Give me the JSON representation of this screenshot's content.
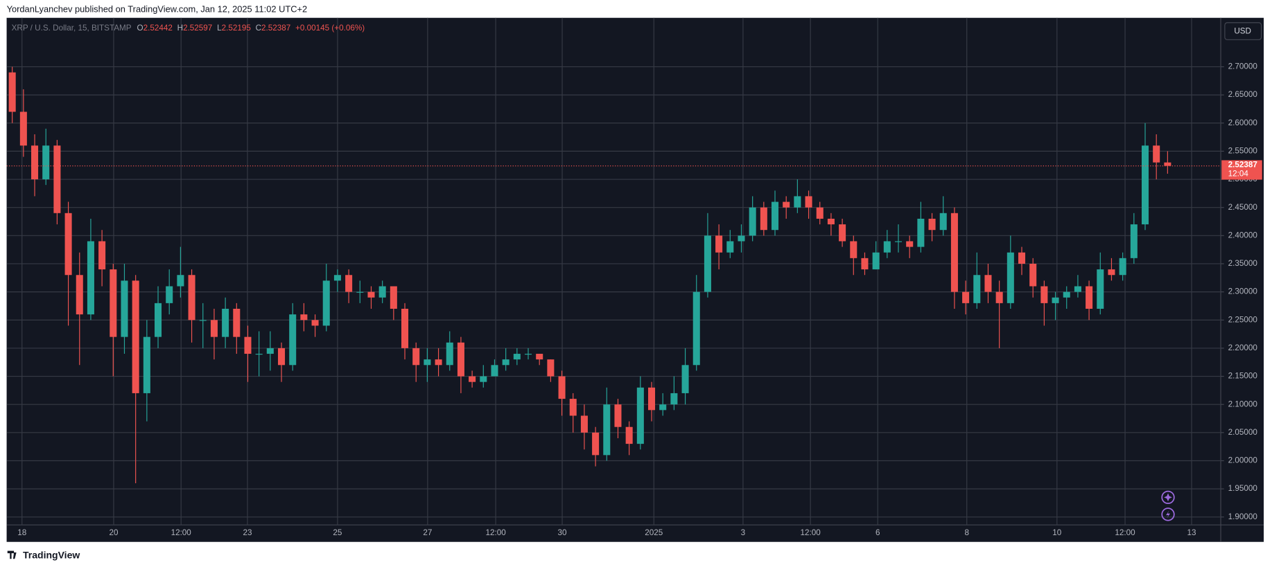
{
  "header": "YordanLyanchev published on TradingView.com, Jan 12, 2025 11:02 UTC+2",
  "footer": "TradingView",
  "chart_data": {
    "type": "candlestick",
    "title": "XRP / U.S. Dollar, 15, BITSTAMP",
    "ohlc_legend": {
      "labels": [
        "O",
        "H",
        "L",
        "C"
      ],
      "values": [
        2.52442,
        2.52597,
        2.52195,
        2.52387
      ],
      "change": "+0.00145 (+0.06%)"
    },
    "currency": "USD",
    "colors": {
      "up": "#26a69a",
      "down": "#ef5350"
    },
    "open": [
      2.69,
      2.62,
      2.56,
      2.5,
      2.56,
      2.44,
      2.33,
      2.26,
      2.39,
      2.34,
      2.22,
      2.32,
      2.12,
      2.22,
      2.28,
      2.31,
      2.33,
      2.25,
      2.25,
      2.22,
      2.27,
      2.22,
      2.19,
      2.19,
      2.2,
      2.17,
      2.26,
      2.25,
      2.24,
      2.32,
      2.33,
      2.3,
      2.3,
      2.29,
      2.31,
      2.27,
      2.2,
      2.17,
      2.18,
      2.17,
      2.21,
      2.15,
      2.14,
      2.15,
      2.17,
      2.18,
      2.19,
      2.19,
      2.18,
      2.15,
      2.11,
      2.08,
      2.05,
      2.01,
      2.1,
      2.06,
      2.03,
      2.13,
      2.09,
      2.1,
      2.12,
      2.17,
      2.3,
      2.4,
      2.37,
      2.39,
      2.4,
      2.45,
      2.41,
      2.46,
      2.45,
      2.47,
      2.45,
      2.43,
      2.42,
      2.39,
      2.36,
      2.34,
      2.37,
      2.39,
      2.39,
      2.38,
      2.43,
      2.41,
      2.44,
      2.3,
      2.28,
      2.33,
      2.3,
      2.28,
      2.37,
      2.35,
      2.31,
      2.28,
      2.29,
      2.3,
      2.31,
      2.27,
      2.34,
      2.33,
      2.36,
      2.42,
      2.56,
      2.53
    ],
    "high": [
      2.7,
      2.66,
      2.58,
      2.59,
      2.57,
      2.46,
      2.37,
      2.43,
      2.41,
      2.35,
      2.35,
      2.33,
      2.25,
      2.31,
      2.34,
      2.38,
      2.34,
      2.28,
      2.27,
      2.29,
      2.28,
      2.24,
      2.23,
      2.23,
      2.21,
      2.28,
      2.28,
      2.26,
      2.35,
      2.34,
      2.34,
      2.32,
      2.31,
      2.32,
      2.31,
      2.28,
      2.21,
      2.2,
      2.2,
      2.23,
      2.22,
      2.16,
      2.17,
      2.18,
      2.2,
      2.2,
      2.2,
      2.19,
      2.18,
      2.16,
      2.12,
      2.1,
      2.06,
      2.13,
      2.11,
      2.07,
      2.15,
      2.14,
      2.12,
      2.15,
      2.2,
      2.33,
      2.44,
      2.42,
      2.41,
      2.42,
      2.47,
      2.46,
      2.48,
      2.47,
      2.5,
      2.48,
      2.46,
      2.44,
      2.43,
      2.4,
      2.37,
      2.39,
      2.41,
      2.42,
      2.4,
      2.46,
      2.44,
      2.47,
      2.45,
      2.32,
      2.37,
      2.35,
      2.32,
      2.4,
      2.38,
      2.36,
      2.32,
      2.3,
      2.31,
      2.33,
      2.32,
      2.37,
      2.36,
      2.37,
      2.44,
      2.6,
      2.58,
      2.55
    ],
    "low": [
      2.6,
      2.54,
      2.47,
      2.49,
      2.42,
      2.24,
      2.17,
      2.25,
      2.31,
      2.15,
      2.19,
      1.96,
      2.07,
      2.2,
      2.26,
      2.29,
      2.21,
      2.2,
      2.18,
      2.2,
      2.19,
      2.14,
      2.15,
      2.16,
      2.14,
      2.16,
      2.23,
      2.22,
      2.23,
      2.3,
      2.28,
      2.28,
      2.27,
      2.28,
      2.25,
      2.18,
      2.14,
      2.14,
      2.15,
      2.16,
      2.12,
      2.13,
      2.13,
      2.15,
      2.16,
      2.17,
      2.18,
      2.17,
      2.14,
      2.08,
      2.05,
      2.02,
      1.99,
      2.0,
      2.04,
      2.01,
      2.02,
      2.07,
      2.08,
      2.09,
      2.1,
      2.16,
      2.29,
      2.34,
      2.36,
      2.37,
      2.39,
      2.4,
      2.4,
      2.43,
      2.44,
      2.43,
      2.42,
      2.4,
      2.38,
      2.33,
      2.33,
      2.34,
      2.36,
      2.37,
      2.36,
      2.37,
      2.39,
      2.4,
      2.27,
      2.26,
      2.27,
      2.28,
      2.2,
      2.27,
      2.33,
      2.29,
      2.24,
      2.25,
      2.27,
      2.29,
      2.25,
      2.26,
      2.32,
      2.32,
      2.35,
      2.41,
      2.5,
      2.51
    ],
    "close": [
      2.62,
      2.56,
      2.5,
      2.56,
      2.44,
      2.33,
      2.26,
      2.39,
      2.34,
      2.22,
      2.32,
      2.12,
      2.22,
      2.28,
      2.31,
      2.33,
      2.25,
      2.25,
      2.22,
      2.27,
      2.22,
      2.19,
      2.19,
      2.2,
      2.17,
      2.26,
      2.25,
      2.24,
      2.32,
      2.33,
      2.3,
      2.3,
      2.29,
      2.31,
      2.27,
      2.2,
      2.17,
      2.18,
      2.17,
      2.21,
      2.15,
      2.14,
      2.15,
      2.17,
      2.18,
      2.19,
      2.19,
      2.18,
      2.15,
      2.11,
      2.08,
      2.05,
      2.01,
      2.1,
      2.06,
      2.03,
      2.13,
      2.09,
      2.1,
      2.12,
      2.17,
      2.3,
      2.4,
      2.37,
      2.39,
      2.4,
      2.45,
      2.41,
      2.46,
      2.45,
      2.47,
      2.45,
      2.43,
      2.42,
      2.39,
      2.36,
      2.34,
      2.37,
      2.39,
      2.39,
      2.38,
      2.43,
      2.41,
      2.44,
      2.3,
      2.28,
      2.33,
      2.3,
      2.28,
      2.37,
      2.35,
      2.31,
      2.28,
      2.29,
      2.3,
      2.31,
      2.27,
      2.34,
      2.33,
      2.36,
      2.42,
      2.56,
      2.53,
      2.52387
    ],
    "last_price": 2.52387,
    "countdown": "12:04",
    "ylim": [
      1.886,
      2.787
    ],
    "yticks": [
      {
        "value": 1.9,
        "label": "1.90000"
      },
      {
        "value": 1.95,
        "label": "1.95000"
      },
      {
        "value": 2.0,
        "label": "2.00000"
      },
      {
        "value": 2.05,
        "label": "2.05000"
      },
      {
        "value": 2.1,
        "label": "2.10000"
      },
      {
        "value": 2.15,
        "label": "2.15000"
      },
      {
        "value": 2.2,
        "label": "2.20000"
      },
      {
        "value": 2.25,
        "label": "2.25000"
      },
      {
        "value": 2.3,
        "label": "2.30000"
      },
      {
        "value": 2.35,
        "label": "2.35000"
      },
      {
        "value": 2.4,
        "label": "2.40000"
      },
      {
        "value": 2.45,
        "label": "2.45000"
      },
      {
        "value": 2.5,
        "label": "2.50000"
      },
      {
        "value": 2.55,
        "label": "2.55000"
      },
      {
        "value": 2.6,
        "label": "2.60000"
      },
      {
        "value": 2.65,
        "label": "2.65000"
      },
      {
        "value": 2.7,
        "label": "2.70000"
      }
    ],
    "xlim": [
      0,
      108.24
    ],
    "xticks": [
      {
        "value": 1.37,
        "label": "18"
      },
      {
        "value": 9.54,
        "label": "20"
      },
      {
        "value": 15.55,
        "label": "12:00"
      },
      {
        "value": 21.47,
        "label": "23"
      },
      {
        "value": 29.5,
        "label": "25"
      },
      {
        "value": 37.53,
        "label": "27"
      },
      {
        "value": 43.6,
        "label": "12:00"
      },
      {
        "value": 49.53,
        "label": "30"
      },
      {
        "value": 57.7,
        "label": "2025"
      },
      {
        "value": 65.65,
        "label": "3"
      },
      {
        "value": 71.66,
        "label": "12:00"
      },
      {
        "value": 77.66,
        "label": "6"
      },
      {
        "value": 85.6,
        "label": "8"
      },
      {
        "value": 93.64,
        "label": "10"
      },
      {
        "value": 99.71,
        "label": "12:00"
      },
      {
        "value": 105.64,
        "label": "13"
      }
    ],
    "grid": true
  }
}
